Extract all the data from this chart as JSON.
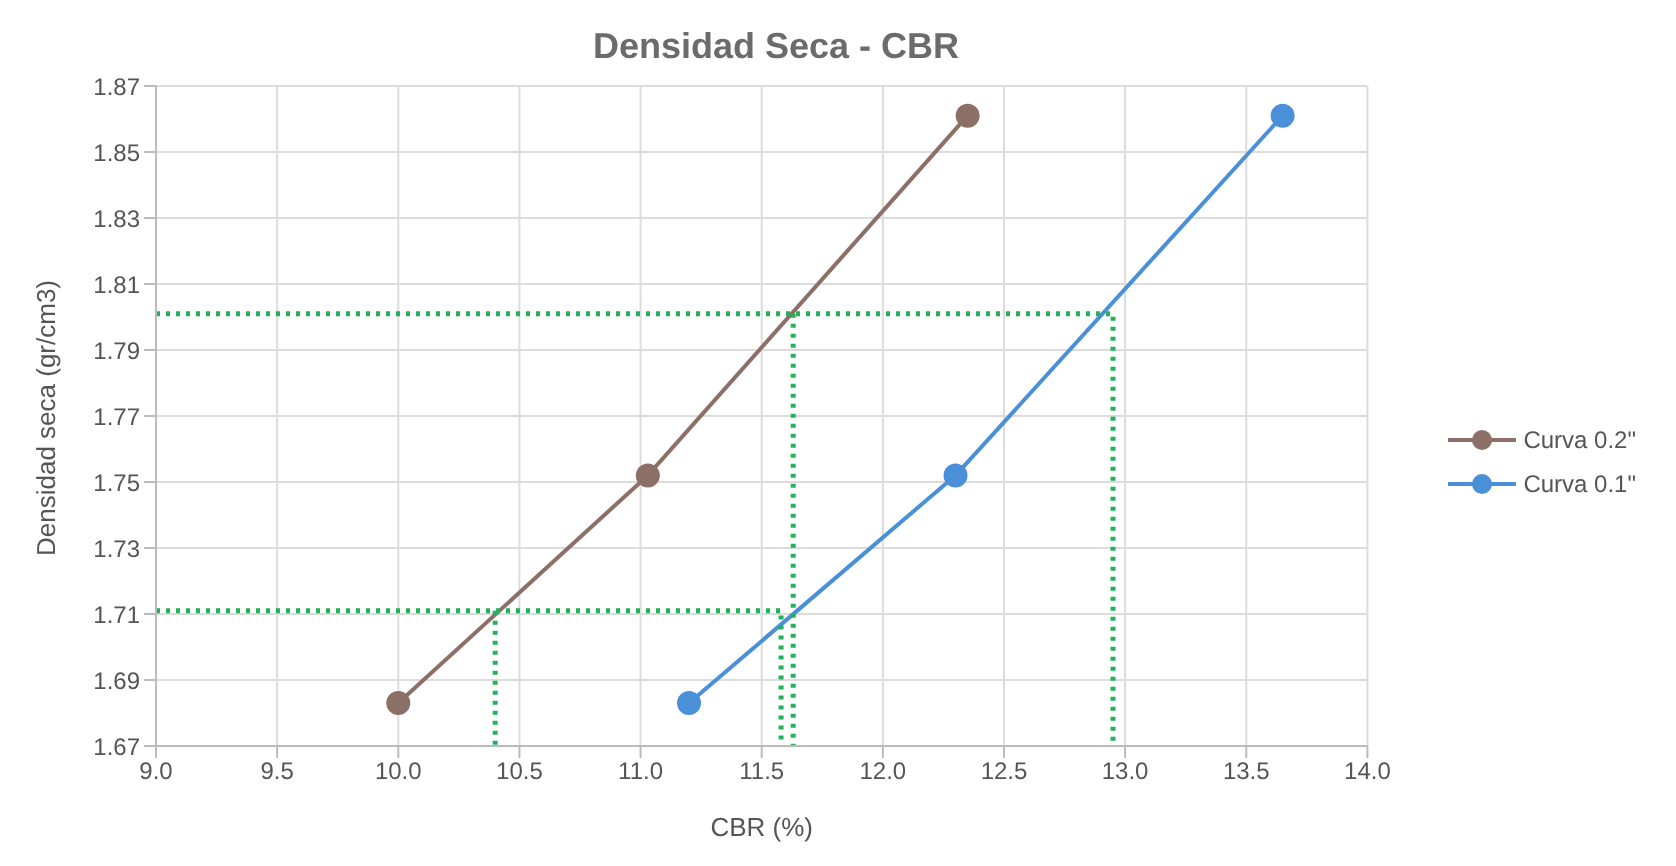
{
  "chart_data": {
    "type": "line",
    "title": "Densidad Seca - CBR",
    "xlabel": "CBR (%)",
    "ylabel": "Densidad seca (gr/cm3)",
    "xlim": [
      9,
      14
    ],
    "xticks": [
      {
        "value": 9,
        "label": "9.0"
      },
      {
        "value": 9.5,
        "label": "9.5"
      },
      {
        "value": 10,
        "label": "10.0"
      },
      {
        "value": 10.5,
        "label": "10.5"
      },
      {
        "value": 11,
        "label": "11.0"
      },
      {
        "value": 11.5,
        "label": "11.5"
      },
      {
        "value": 12,
        "label": "12.0"
      },
      {
        "value": 12.5,
        "label": "12.5"
      },
      {
        "value": 13,
        "label": "13.0"
      },
      {
        "value": 13.5,
        "label": "13.5"
      },
      {
        "value": 14,
        "label": "14.0"
      }
    ],
    "ylim": [
      1.67,
      1.87
    ],
    "yticks": [
      1.67,
      1.69,
      1.71,
      1.73,
      1.75,
      1.77,
      1.79,
      1.81,
      1.83,
      1.85,
      1.87
    ],
    "grid": true,
    "legend": "right",
    "marker": "circle",
    "line_style": "solid",
    "series": [
      {
        "name": "Curva 0.2\"",
        "color": "#8c6f67",
        "x": [
          10.0,
          11.03,
          12.35
        ],
        "values": [
          1.683,
          1.752,
          1.861
        ]
      },
      {
        "name": "Curva 0.1\"",
        "color": "#4a90d9",
        "x": [
          11.2,
          12.3,
          13.65
        ],
        "values": [
          1.683,
          1.752,
          1.861
        ]
      },
      {
        "color": "#22b35a",
        "marker": "none",
        "line_style": "dotted",
        "x": [
          9,
          12.95,
          12.95
        ],
        "values": [
          1.801,
          1.801,
          1.67
        ]
      },
      {
        "color": "#22b35a",
        "marker": "none",
        "line_style": "dotted",
        "x": [
          11.63,
          11.63
        ],
        "values": [
          1.801,
          1.67
        ]
      },
      {
        "color": "#22b35a",
        "marker": "none",
        "line_style": "dotted",
        "x": [
          9,
          11.58,
          11.58
        ],
        "values": [
          1.711,
          1.711,
          1.67
        ]
      },
      {
        "color": "#22b35a",
        "marker": "none",
        "line_style": "dotted",
        "x": [
          10.4,
          10.4
        ],
        "values": [
          1.711,
          1.67
        ]
      }
    ]
  }
}
